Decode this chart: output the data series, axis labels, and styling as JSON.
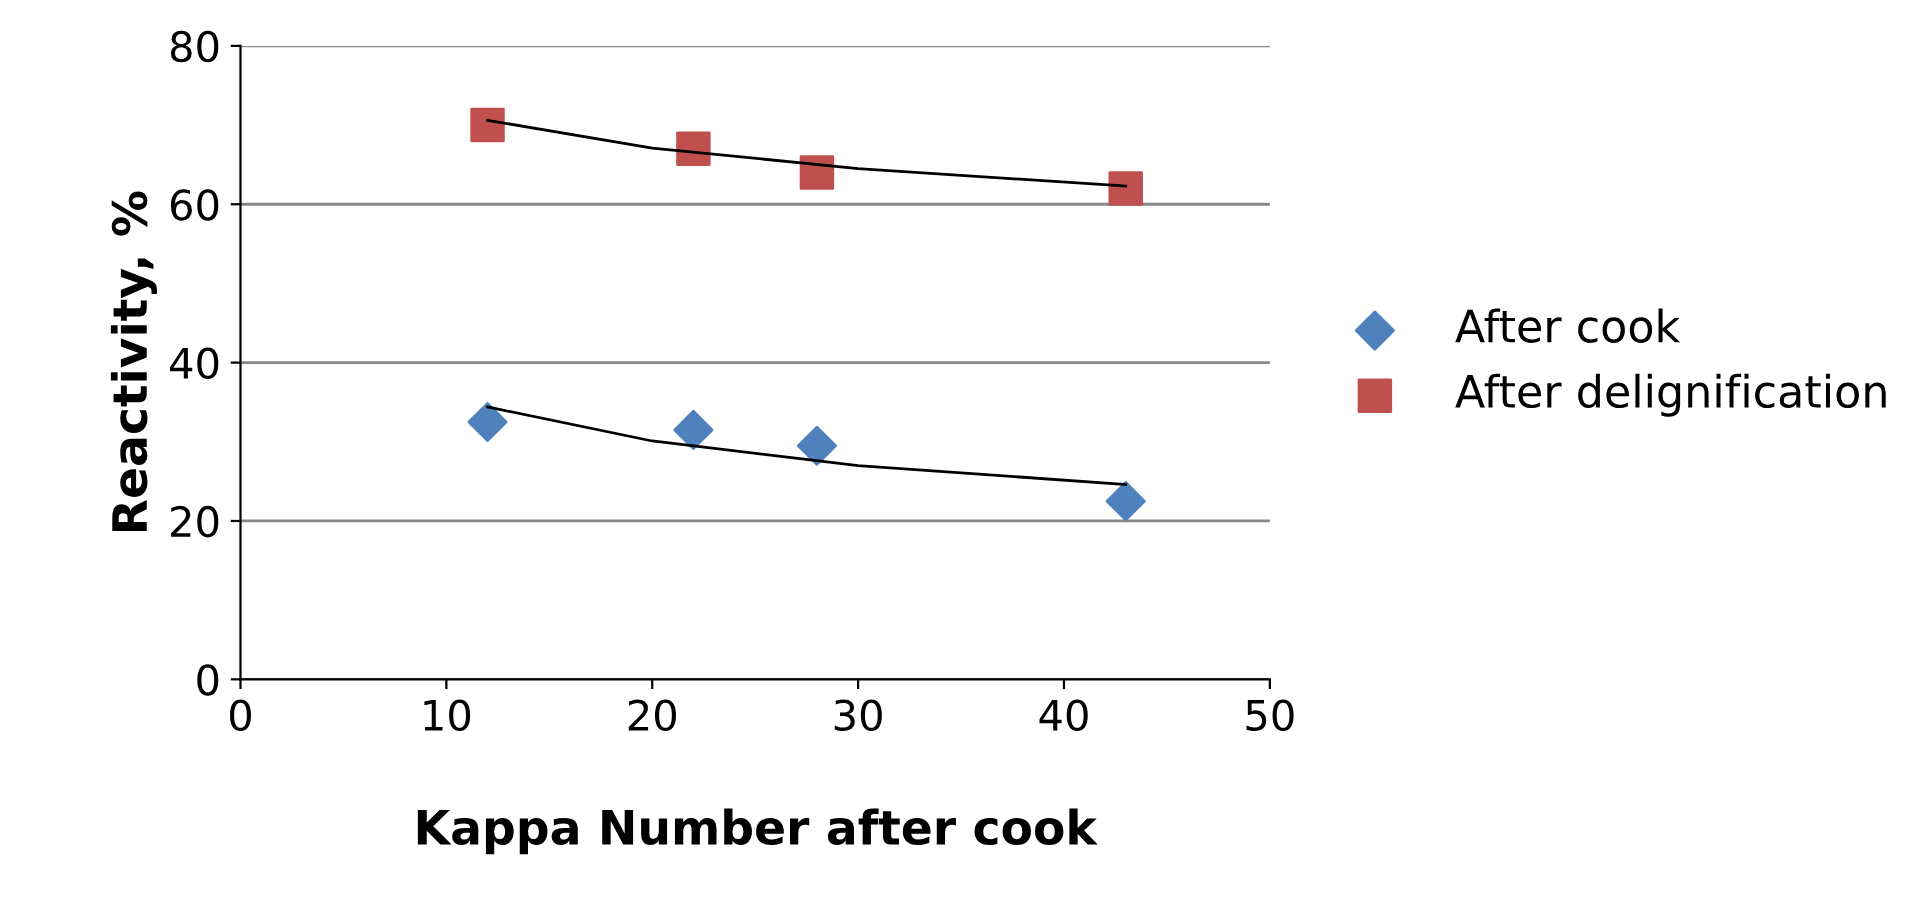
{
  "chart_data": {
    "type": "scatter",
    "xlabel": "Kappa Number after cook",
    "ylabel": "Reactivity, %",
    "xlim": [
      0,
      50
    ],
    "xticks": [
      0,
      10,
      20,
      30,
      40,
      50
    ],
    "ylim": [
      0,
      80
    ],
    "yticks": [
      0,
      20,
      40,
      60,
      80
    ],
    "grid": "y",
    "legend": "right",
    "series": [
      {
        "name": "After cook",
        "color": "#4f81bd",
        "marker": "diamond",
        "x": [
          12,
          22,
          28,
          43
        ],
        "values": [
          32.5,
          31.5,
          29.5,
          22.5
        ]
      },
      {
        "name": "After delignification",
        "color": "#c0504d",
        "marker": "square",
        "x": [
          12,
          22,
          28,
          43
        ],
        "values": [
          70,
          67,
          64,
          62
        ]
      },
      {
        "type": "line",
        "color": "#000000",
        "marker": "none",
        "x": [
          12,
          20,
          30,
          43
        ],
        "values": [
          34.4,
          30.1,
          27.0,
          24.6
        ]
      },
      {
        "type": "line",
        "color": "#000000",
        "marker": "none",
        "x": [
          12,
          20,
          30,
          43
        ],
        "values": [
          70.6,
          67.1,
          64.5,
          62.3
        ]
      }
    ]
  }
}
